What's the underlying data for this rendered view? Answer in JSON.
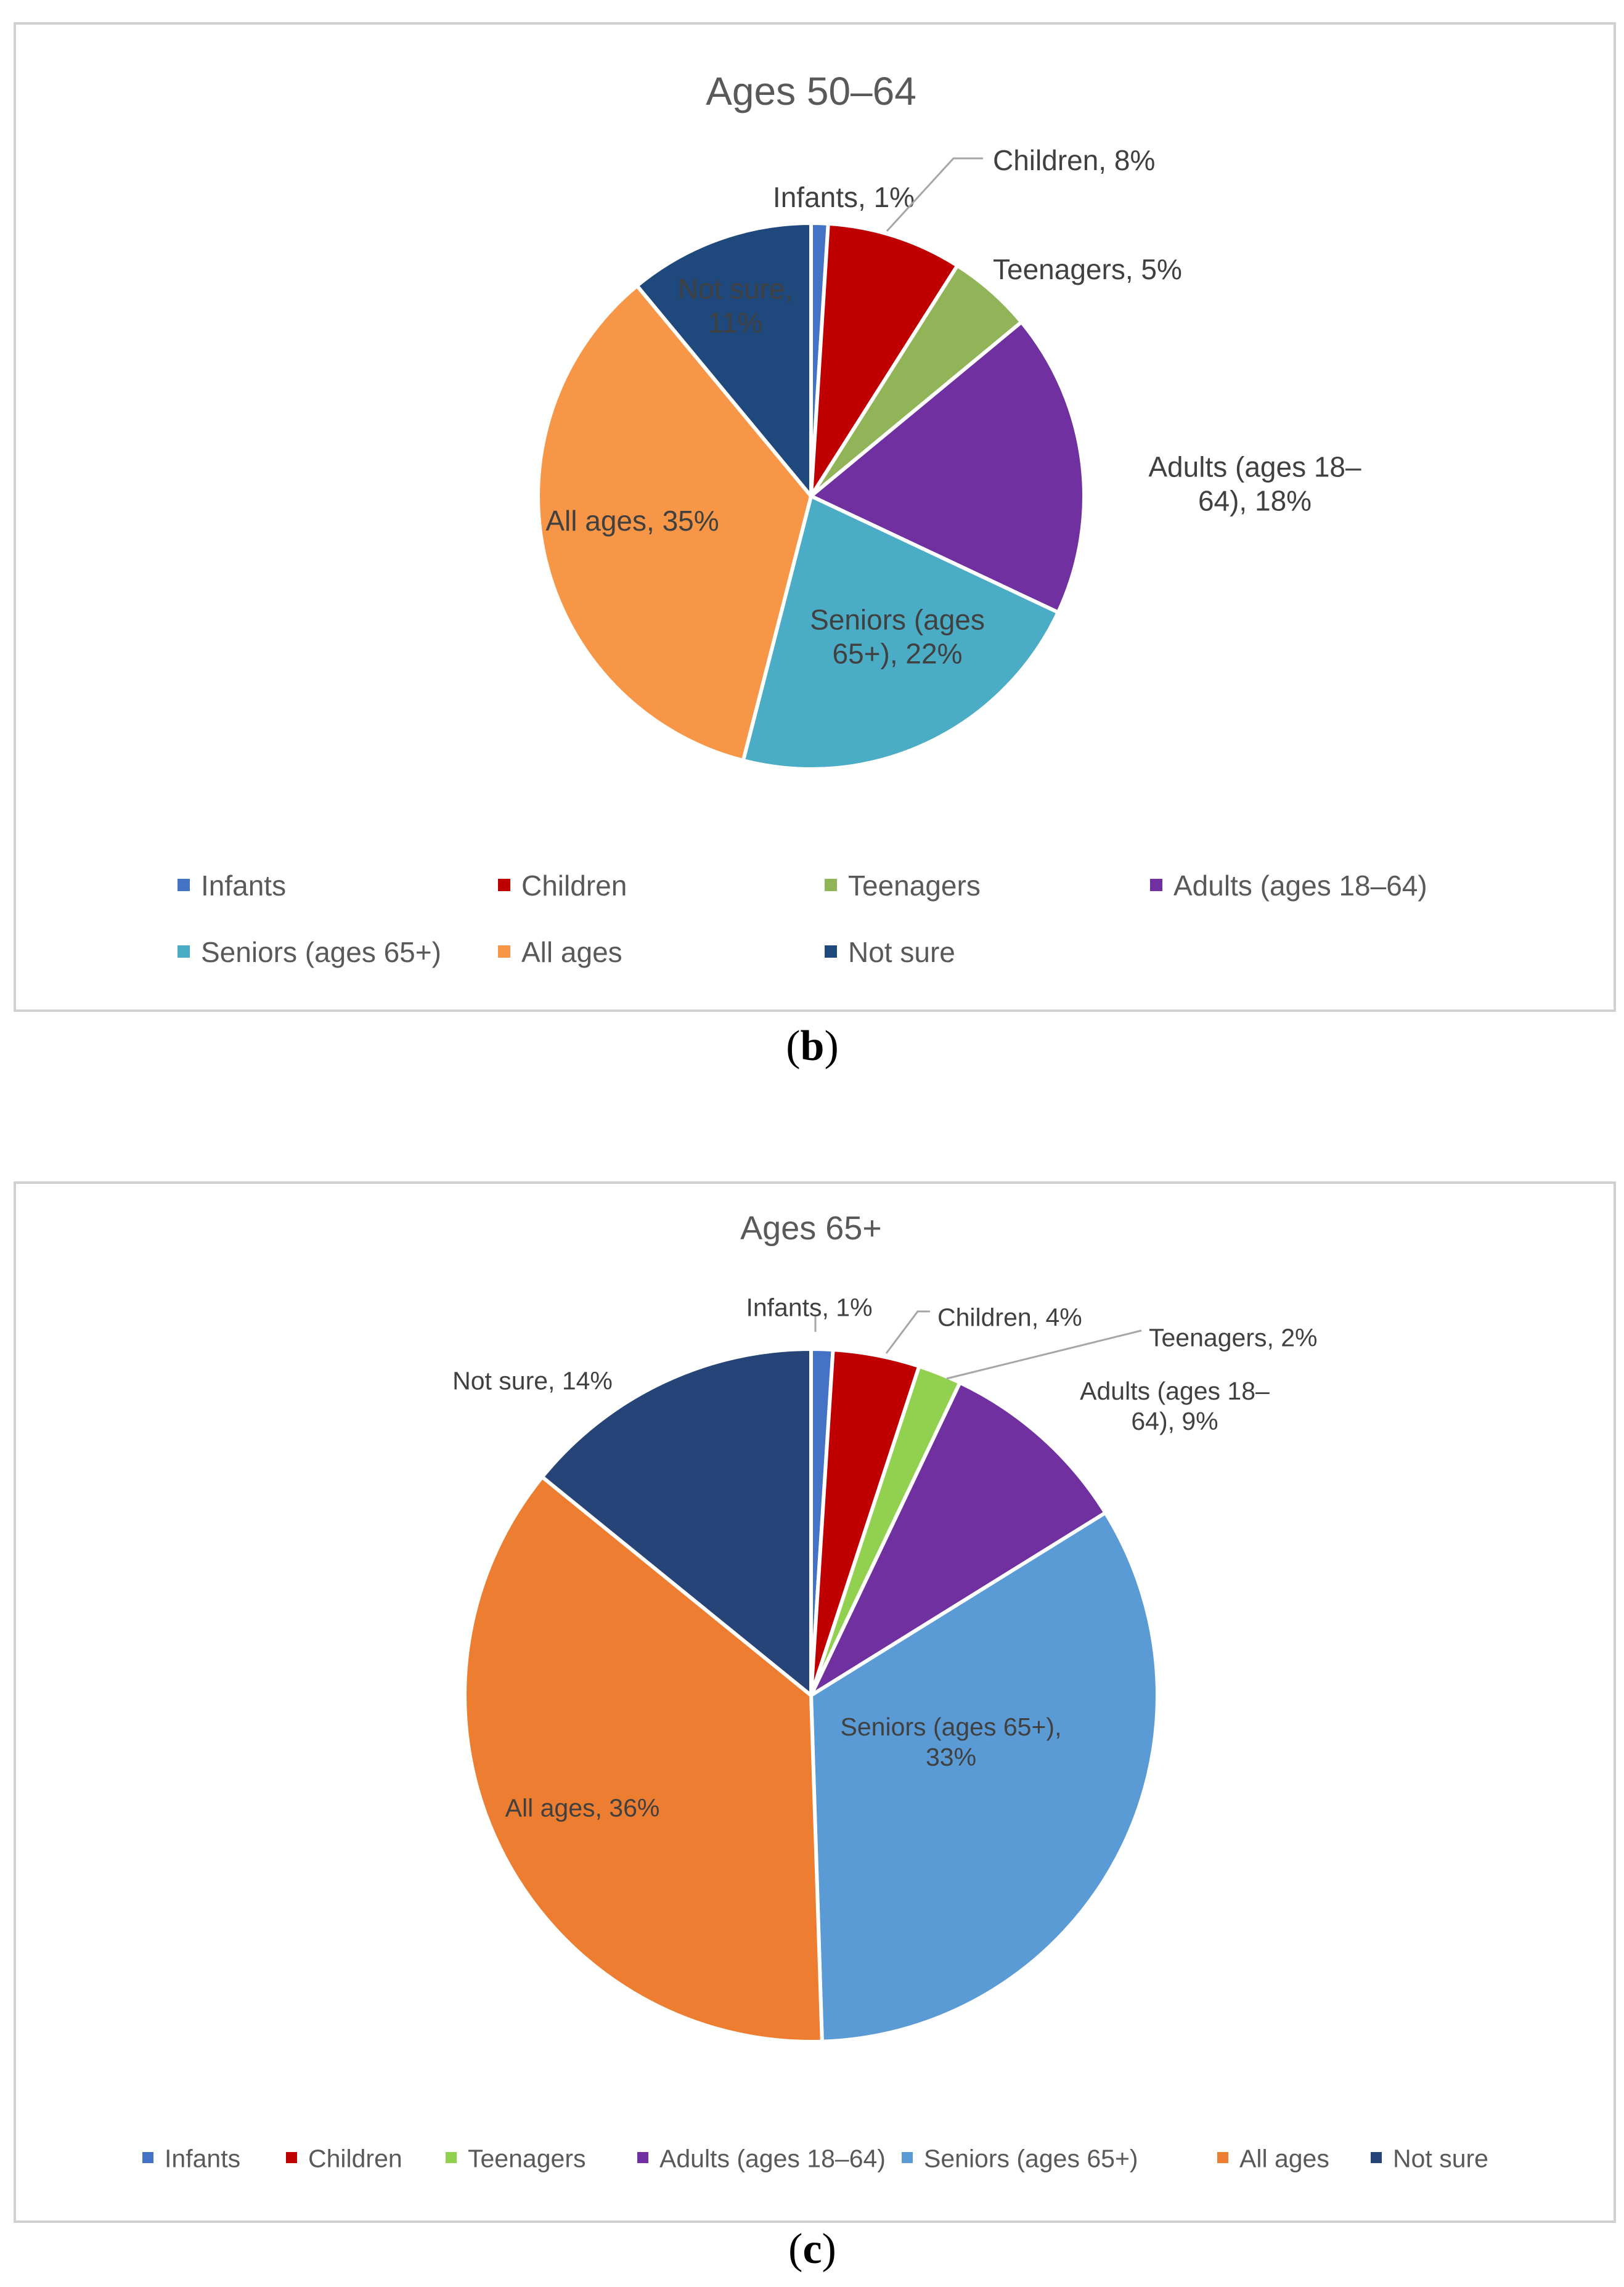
{
  "chart_data": [
    {
      "type": "pie",
      "panel": "b",
      "title": "Ages 50–64",
      "categories": [
        "Infants",
        "Children",
        "Teenagers",
        "Adults (ages 18–64)",
        "Seniors (ages 65+)",
        "All ages",
        "Not sure"
      ],
      "values": [
        1,
        8,
        5,
        18,
        22,
        35,
        11
      ],
      "colors": [
        "#4472c4",
        "#c00000",
        "#92b458",
        "#7030a0",
        "#4bacc6",
        "#f79646",
        "#1f497d"
      ],
      "data_labels": [
        [
          "Infants, 1%"
        ],
        [
          "Children, 8%"
        ],
        [
          "Teenagers, 5%"
        ],
        [
          "Adults (ages 18–",
          "64), 18%"
        ],
        [
          "Seniors (ages",
          "65+), 22%"
        ],
        [
          "All ages, 35%"
        ],
        [
          "Not sure,",
          "11%"
        ]
      ],
      "legend": [
        "Infants",
        "Children",
        "Teenagers",
        "Adults (ages 18–64)",
        "Seniors (ages 65+)",
        "All ages",
        "Not sure"
      ],
      "legend_position": "bottom"
    },
    {
      "type": "pie",
      "panel": "c",
      "title": "Ages 65+",
      "categories": [
        "Infants",
        "Children",
        "Teenagers",
        "Adults (ages 18–64)",
        "Seniors (ages 65+)",
        "All ages",
        "Not sure"
      ],
      "values": [
        1,
        4,
        2,
        9,
        33,
        36,
        14
      ],
      "colors": [
        "#4472c4",
        "#c00000",
        "#92d050",
        "#7030a0",
        "#5b9bd5",
        "#ed7d31",
        "#264478"
      ],
      "data_labels": [
        [
          "Infants, 1%"
        ],
        [
          "Children, 4%"
        ],
        [
          "Teenagers, 2%"
        ],
        [
          "Adults (ages 18–",
          "64), 9%"
        ],
        [
          "Seniors (ages 65+),",
          "33%"
        ],
        [
          "All ages, 36%"
        ],
        [
          "Not sure, 14%"
        ]
      ],
      "legend": [
        "Infants",
        "Children",
        "Teenagers",
        "Adults (ages 18–64)",
        "Seniors (ages 65+)",
        "All ages",
        "Not sure"
      ],
      "legend_position": "bottom"
    }
  ],
  "panel_labels": {
    "b": "b",
    "c": "c"
  }
}
